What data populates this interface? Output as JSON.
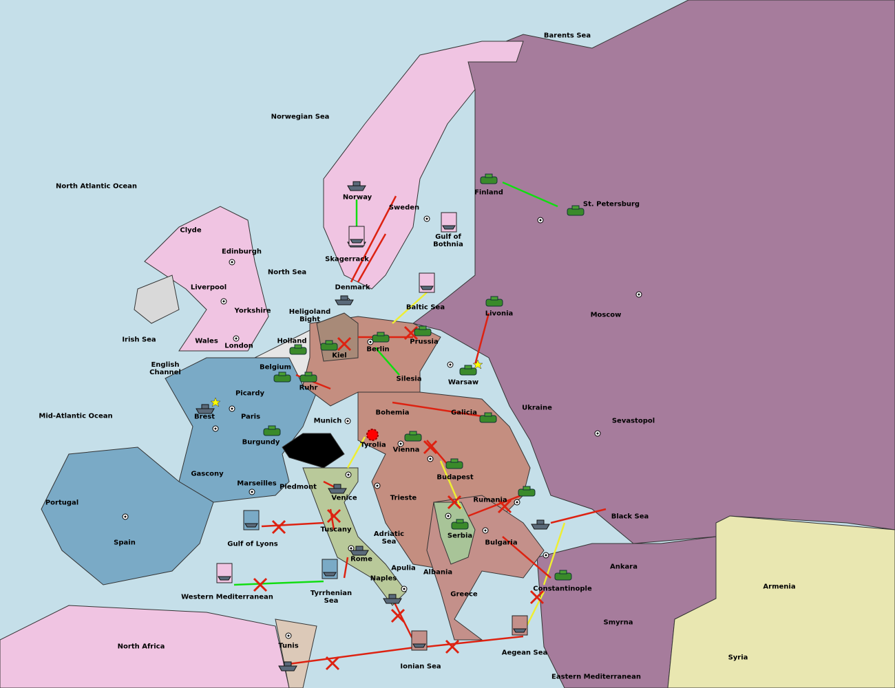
{
  "regions": [
    "Barents Sea",
    "Norwegian Sea",
    "North Atlantic Ocean",
    "Clyde",
    "Edinburgh",
    "Liverpool",
    "Yorkshire",
    "Wales",
    "London",
    "Irish Sea",
    "English Channel",
    "Mid-Atlantic Ocean",
    "North Sea",
    "Norway",
    "Sweden",
    "Finland",
    "St. Petersburg",
    "Gulf of Bothnia",
    "Skagerrack",
    "Denmark",
    "Heligoland Bight",
    "Holland",
    "Belgium",
    "Kiel",
    "Berlin",
    "Prussia",
    "Baltic Sea",
    "Livonia",
    "Moscow",
    "Warsaw",
    "Silesia",
    "Ruhr",
    "Picardy",
    "Brest",
    "Paris",
    "Burgundy",
    "Munich",
    "Bohemia",
    "Galicia",
    "Ukraine",
    "Sevastopol",
    "Tyrolia",
    "Vienna",
    "Budapest",
    "Gascony",
    "Marseilles",
    "Piedmont",
    "Venice",
    "Trieste",
    "Rumania",
    "Black Sea",
    "Portugal",
    "Spain",
    "Gulf of Lyons",
    "Tuscany",
    "Adriatic Sea",
    "Serbia",
    "Bulgaria",
    "Rome",
    "Apulia",
    "Albania",
    "Ankara",
    "Armenia",
    "Constantinople",
    "Naples",
    "Tyrrhenian Sea",
    "Western Mediterranean",
    "Greece",
    "Smyrna",
    "North Africa",
    "Tunis",
    "Ionian Sea",
    "Aegean Sea",
    "Eastern Mediterranean",
    "Syria"
  ]
}
